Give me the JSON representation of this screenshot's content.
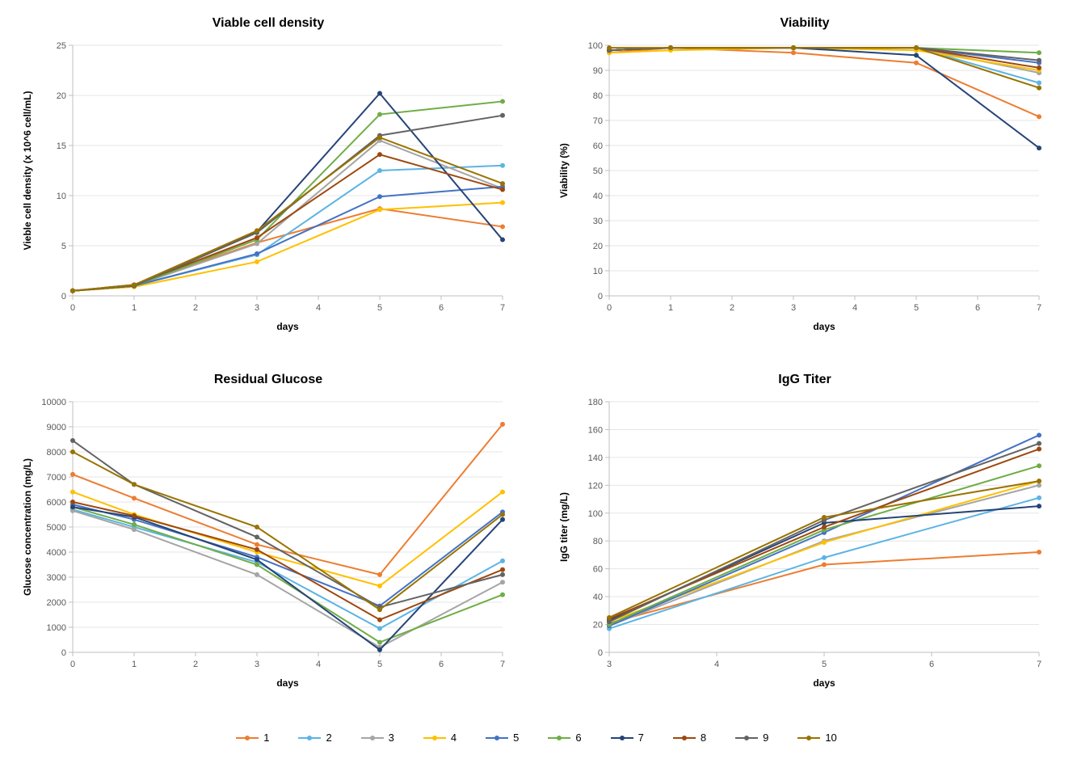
{
  "series_colors": {
    "1": "#ed7d31",
    "2": "#5cb4e4",
    "3": "#a5a5a5",
    "4": "#ffc000",
    "5": "#4472c4",
    "6": "#70ad47",
    "7": "#264478",
    "8": "#9e480e",
    "9": "#636363",
    "10": "#997300"
  },
  "series_labels": [
    "1",
    "2",
    "3",
    "4",
    "5",
    "6",
    "7",
    "8",
    "9",
    "10"
  ],
  "background_color": "#ffffff",
  "axis_color": "#bfbfbf",
  "grid_color": "#e6e6e6",
  "tick_label_color": "#595959",
  "title_fontsize": 16,
  "axis_label_fontsize": 12,
  "tick_fontsize": 11,
  "line_width": 2,
  "marker_size": 3,
  "charts": {
    "vcd": {
      "type": "line",
      "title": "Viable cell density",
      "xlabel": "days",
      "ylabel": "Vieble cell density (x 10^6 cell/mL)",
      "xlim": [
        0,
        7
      ],
      "ylim": [
        0,
        25
      ],
      "xticks": [
        0,
        1,
        2,
        3,
        4,
        5,
        6,
        7
      ],
      "yticks": [
        0,
        5,
        10,
        15,
        20,
        25
      ],
      "x": [
        0,
        1,
        3,
        5,
        7
      ],
      "series": {
        "1": [
          0.5,
          1.1,
          5.3,
          8.7,
          6.9
        ],
        "2": [
          0.5,
          1.0,
          4.1,
          12.5,
          13.0
        ],
        "3": [
          0.5,
          1.0,
          5.2,
          15.5,
          10.7
        ],
        "4": [
          0.5,
          0.9,
          3.4,
          8.6,
          9.3
        ],
        "5": [
          0.5,
          1.0,
          4.2,
          9.9,
          10.9
        ],
        "6": [
          0.5,
          1.0,
          5.6,
          18.1,
          19.4
        ],
        "7": [
          0.5,
          1.0,
          6.4,
          20.2,
          5.6
        ],
        "8": [
          0.5,
          1.1,
          5.8,
          14.1,
          10.6
        ],
        "9": [
          0.5,
          1.0,
          6.3,
          16.0,
          18.0
        ],
        "10": [
          0.5,
          1.1,
          6.5,
          15.8,
          11.2
        ]
      }
    },
    "viability": {
      "type": "line",
      "title": "Viability",
      "xlabel": "days",
      "ylabel": "Viability (%)",
      "xlim": [
        0,
        7
      ],
      "ylim": [
        0,
        100
      ],
      "xticks": [
        0,
        1,
        2,
        3,
        4,
        5,
        6,
        7
      ],
      "yticks": [
        0,
        10,
        20,
        30,
        40,
        50,
        60,
        70,
        80,
        90,
        100
      ],
      "x": [
        0,
        1,
        3,
        5,
        7
      ],
      "series": {
        "1": [
          97,
          99,
          97,
          93,
          71.5
        ],
        "2": [
          98,
          99,
          99,
          99,
          85
        ],
        "3": [
          98,
          99,
          99,
          99,
          89
        ],
        "4": [
          97,
          98,
          99,
          98,
          90
        ],
        "5": [
          98,
          99,
          99,
          99,
          93
        ],
        "6": [
          98,
          99,
          99,
          99,
          97
        ],
        "7": [
          98,
          99,
          99,
          96,
          59
        ],
        "8": [
          98,
          99,
          99,
          99,
          91
        ],
        "9": [
          98,
          99,
          99,
          99,
          94
        ],
        "10": [
          99,
          99,
          99,
          99,
          83
        ]
      }
    },
    "glucose": {
      "type": "line",
      "title": "Residual Glucose",
      "xlabel": "days",
      "ylabel": "Glucose concentration (mg/L)",
      "xlim": [
        0,
        7
      ],
      "ylim": [
        0,
        10000
      ],
      "xticks": [
        0,
        1,
        2,
        3,
        4,
        5,
        6,
        7
      ],
      "yticks": [
        0,
        1000,
        2000,
        3000,
        4000,
        5000,
        6000,
        7000,
        8000,
        9000,
        10000
      ],
      "x": [
        0,
        1,
        3,
        5,
        7
      ],
      "series": {
        "1": [
          7100,
          6150,
          4300,
          3100,
          9100
        ],
        "2": [
          5700,
          5000,
          3600,
          950,
          3650
        ],
        "3": [
          5650,
          4900,
          3100,
          200,
          2800
        ],
        "4": [
          6400,
          5500,
          4000,
          2650,
          6400
        ],
        "5": [
          5900,
          5300,
          3800,
          1850,
          5600
        ],
        "6": [
          5800,
          5100,
          3500,
          400,
          2300
        ],
        "7": [
          5800,
          5400,
          3700,
          100,
          5300
        ],
        "8": [
          6000,
          5450,
          4100,
          1300,
          3300
        ],
        "9": [
          8450,
          6700,
          4600,
          1800,
          3100
        ],
        "10": [
          8000,
          6700,
          5000,
          1700,
          5500
        ]
      }
    },
    "titer": {
      "type": "line",
      "title": "IgG Titer",
      "xlabel": "days",
      "ylabel": "IgG titer (mg/L)",
      "xlim": [
        3,
        7
      ],
      "ylim": [
        0,
        180
      ],
      "xticks": [
        3,
        4,
        5,
        6,
        7
      ],
      "yticks": [
        0,
        20,
        40,
        60,
        80,
        100,
        120,
        140,
        160,
        180
      ],
      "x": [
        3,
        5,
        7
      ],
      "series": {
        "1": [
          21,
          63,
          72
        ],
        "2": [
          17,
          68,
          111
        ],
        "3": [
          19,
          80,
          120
        ],
        "4": [
          22,
          79,
          123
        ],
        "5": [
          19,
          86,
          156
        ],
        "6": [
          20,
          88,
          134
        ],
        "7": [
          23,
          93,
          105
        ],
        "8": [
          24,
          90,
          146
        ],
        "9": [
          22,
          95,
          150
        ],
        "10": [
          25,
          97,
          123
        ]
      }
    }
  },
  "legend_title": ""
}
